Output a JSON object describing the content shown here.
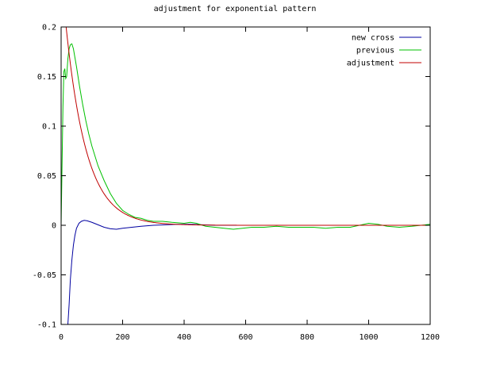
{
  "chart_data": {
    "type": "line",
    "title": "adjustment for exponential pattern",
    "xlabel": "",
    "ylabel": "",
    "xlim": [
      0,
      1200
    ],
    "ylim": [
      -0.1,
      0.2
    ],
    "x_ticks": [
      "0",
      "200",
      "400",
      "600",
      "800",
      "1000",
      "1200"
    ],
    "y_ticks": [
      "-0.1",
      "-0.05",
      "0",
      "0.05",
      "0.1",
      "0.15",
      "0.2"
    ],
    "legend_position": "top-right",
    "grid": false,
    "series": [
      {
        "name": "new cross",
        "color": "#0000a0",
        "points": [
          [
            22,
            -0.1
          ],
          [
            26,
            -0.08
          ],
          [
            30,
            -0.055
          ],
          [
            35,
            -0.035
          ],
          [
            40,
            -0.02
          ],
          [
            45,
            -0.01
          ],
          [
            50,
            -0.003
          ],
          [
            58,
            0.002
          ],
          [
            66,
            0.004
          ],
          [
            75,
            0.005
          ],
          [
            85,
            0.0045
          ],
          [
            100,
            0.003
          ],
          [
            120,
            0.0005
          ],
          [
            140,
            -0.002
          ],
          [
            160,
            -0.0035
          ],
          [
            180,
            -0.004
          ],
          [
            200,
            -0.003
          ],
          [
            230,
            -0.002
          ],
          [
            260,
            -0.001
          ],
          [
            300,
            0.0
          ],
          [
            340,
            0.0005
          ],
          [
            380,
            0.001
          ],
          [
            420,
            0.001
          ],
          [
            460,
            0.0005
          ],
          [
            500,
            0.0
          ],
          [
            600,
            0.0
          ],
          [
            800,
            0.0
          ],
          [
            1000,
            0.0
          ],
          [
            1200,
            0.0
          ]
        ]
      },
      {
        "name": "previous",
        "color": "#00c000",
        "points": [
          [
            0,
            0.0
          ],
          [
            3,
            0.06
          ],
          [
            6,
            0.12
          ],
          [
            9,
            0.155
          ],
          [
            12,
            0.158
          ],
          [
            15,
            0.148
          ],
          [
            18,
            0.15
          ],
          [
            22,
            0.168
          ],
          [
            26,
            0.178
          ],
          [
            30,
            0.182
          ],
          [
            35,
            0.183
          ],
          [
            40,
            0.178
          ],
          [
            50,
            0.16
          ],
          [
            60,
            0.14
          ],
          [
            70,
            0.122
          ],
          [
            80,
            0.106
          ],
          [
            90,
            0.092
          ],
          [
            100,
            0.08
          ],
          [
            120,
            0.06
          ],
          [
            140,
            0.045
          ],
          [
            160,
            0.032
          ],
          [
            180,
            0.022
          ],
          [
            200,
            0.015
          ],
          [
            220,
            0.011
          ],
          [
            240,
            0.008
          ],
          [
            260,
            0.007
          ],
          [
            280,
            0.005
          ],
          [
            300,
            0.004
          ],
          [
            330,
            0.004
          ],
          [
            360,
            0.003
          ],
          [
            400,
            0.002
          ],
          [
            420,
            0.003
          ],
          [
            440,
            0.002
          ],
          [
            470,
            -0.001
          ],
          [
            500,
            -0.002
          ],
          [
            530,
            -0.003
          ],
          [
            560,
            -0.004
          ],
          [
            590,
            -0.003
          ],
          [
            620,
            -0.002
          ],
          [
            660,
            -0.002
          ],
          [
            700,
            -0.001
          ],
          [
            740,
            -0.002
          ],
          [
            780,
            -0.002
          ],
          [
            820,
            -0.002
          ],
          [
            860,
            -0.003
          ],
          [
            900,
            -0.002
          ],
          [
            940,
            -0.002
          ],
          [
            970,
            0.0
          ],
          [
            1000,
            0.002
          ],
          [
            1030,
            0.001
          ],
          [
            1060,
            -0.001
          ],
          [
            1100,
            -0.002
          ],
          [
            1140,
            -0.001
          ],
          [
            1170,
            0.0
          ],
          [
            1200,
            0.001
          ]
        ]
      },
      {
        "name": "adjustment",
        "color": "#c00000",
        "exponential": {
          "a": 0.255,
          "b": 0.0149,
          "from": 0,
          "to": 1200
        }
      }
    ]
  }
}
